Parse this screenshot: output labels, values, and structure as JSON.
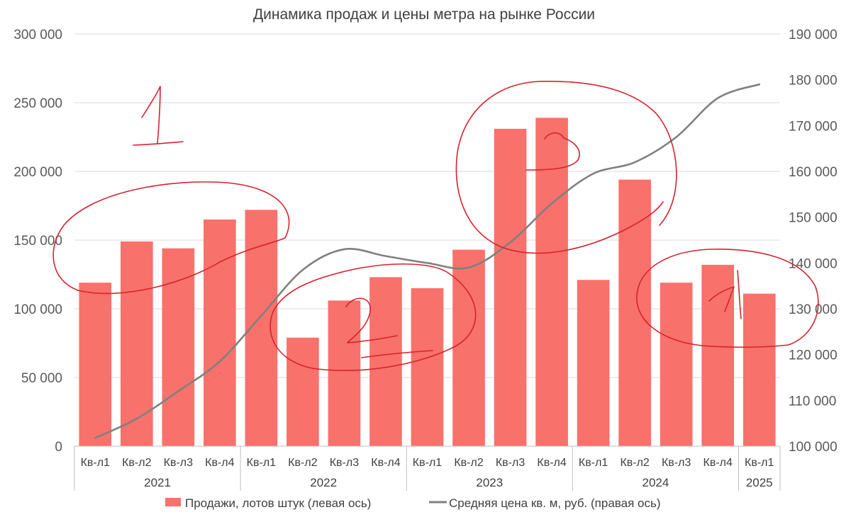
{
  "chart_data": {
    "type": "bar",
    "title": "Динамика продаж и цены метра на рынке России",
    "categories": [
      "Кв-л1",
      "Кв-л2",
      "Кв-л3",
      "Кв-л4",
      "Кв-л1",
      "Кв-л2",
      "Кв-л3",
      "Кв-л4",
      "Кв-л1",
      "Кв-л2",
      "Кв-л3",
      "Кв-л4",
      "Кв-л1",
      "Кв-л2",
      "Кв-л3",
      "Кв-л4",
      "Кв-л1"
    ],
    "groups": [
      {
        "label": "2021",
        "count": 4
      },
      {
        "label": "2022",
        "count": 4
      },
      {
        "label": "2023",
        "count": 4
      },
      {
        "label": "2024",
        "count": 4
      },
      {
        "label": "2025",
        "count": 1
      }
    ],
    "series": [
      {
        "name": "Продажи, лотов штук (левая ось)",
        "type": "bar",
        "axis": "left",
        "color": "#f8716b",
        "values": [
          119000,
          149000,
          144000,
          165000,
          172000,
          79000,
          106000,
          123000,
          115000,
          143000,
          231000,
          239000,
          121000,
          194000,
          119000,
          132000,
          111000
        ]
      },
      {
        "name": "Средняя цена кв. м, руб. (правая ось)",
        "type": "line",
        "axis": "right",
        "color": "#808080",
        "values": [
          101800,
          106000,
          112000,
          118500,
          128500,
          138500,
          143000,
          141500,
          140000,
          139000,
          144500,
          153000,
          159500,
          162000,
          167500,
          176000,
          179000
        ]
      }
    ],
    "y_left": {
      "min": 0,
      "max": 300000,
      "step": 50000,
      "ticks": [
        "0",
        "50 000",
        "100 000",
        "150 000",
        "200 000",
        "250 000",
        "300 000"
      ]
    },
    "y_right": {
      "min": 100000,
      "max": 190000,
      "step": 10000,
      "ticks": [
        "100 000",
        "110 000",
        "120 000",
        "130 000",
        "140 000",
        "150 000",
        "160 000",
        "170 000",
        "180 000",
        "190 000"
      ]
    },
    "grid": true,
    "legend": "bottom"
  }
}
